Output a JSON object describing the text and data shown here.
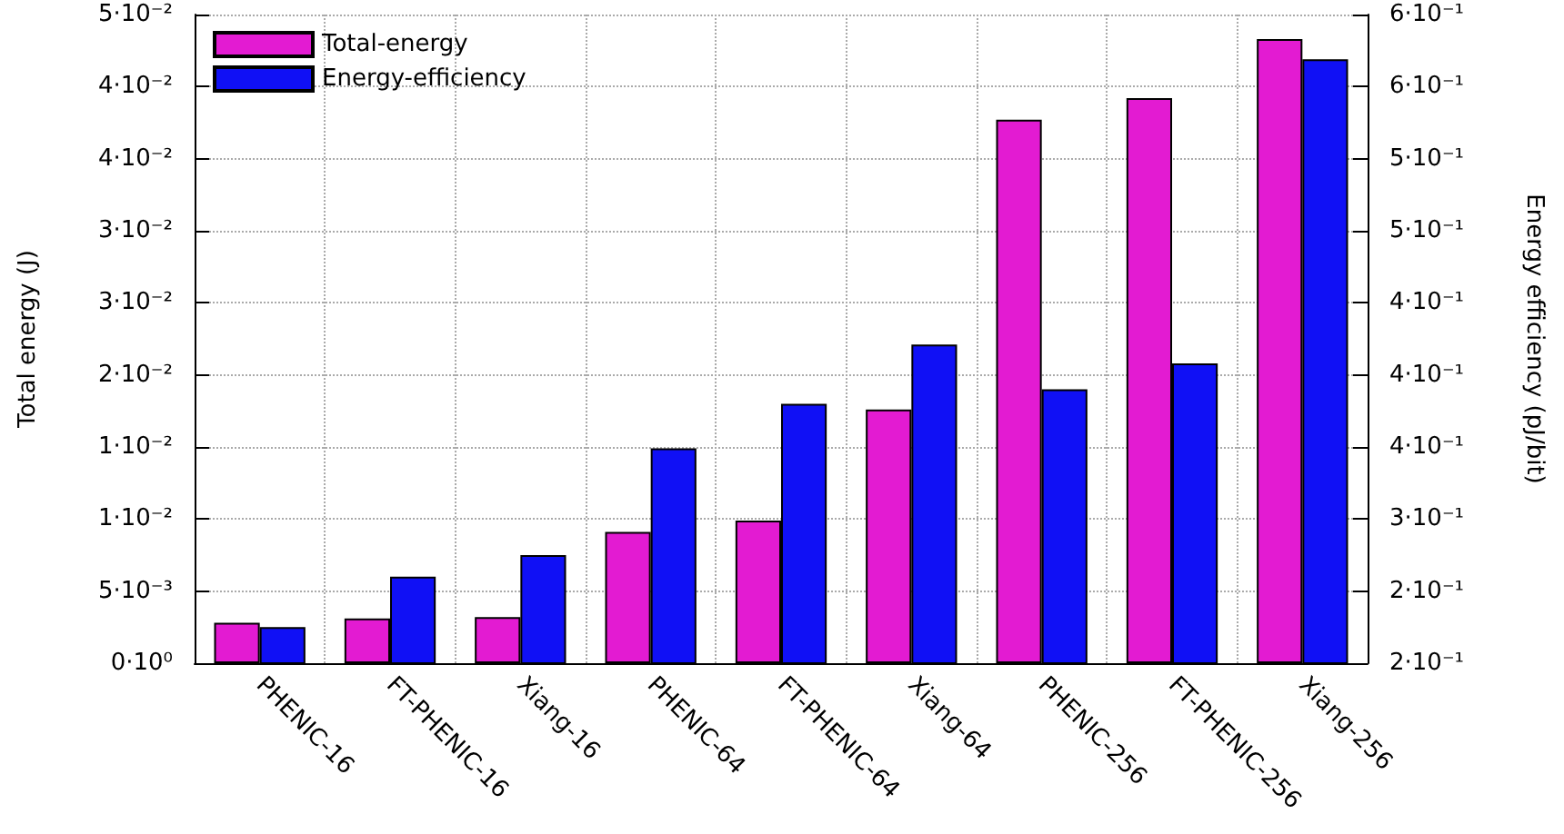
{
  "chart_data": {
    "type": "bar",
    "categories": [
      "PHENIC-16",
      "FT-PHENIC-16",
      "Xiang-16",
      "PHENIC-64",
      "FT-PHENIC-64",
      "Xiang-64",
      "PHENIC-256",
      "FT-PHENIC-256",
      "Xiang-256"
    ],
    "series": [
      {
        "name": "Total-energy",
        "color": "#e31bd2",
        "values": [
          0.0028,
          0.0031,
          0.0032,
          0.0091,
          0.0099,
          0.0176,
          0.0377,
          0.0392,
          0.0433
        ]
      },
      {
        "name": "Energy-efficiency",
        "color": "#1010f5",
        "axis": "y2",
        "values": [
          0.225,
          0.26,
          0.275,
          0.349,
          0.38,
          0.421,
          0.39,
          0.408,
          0.619
        ]
      }
    ],
    "ylabel": "Total energy (J)",
    "y2label": "Energy efficiency (pJ/bit)",
    "ylim": [
      0,
      0.045
    ],
    "yticks": [
      {
        "value": 0,
        "label": "0·10⁰"
      },
      {
        "value": 0.005,
        "label": "5·10⁻³"
      },
      {
        "value": 0.01,
        "label": "1·10⁻²"
      },
      {
        "value": 0.015,
        "label": "1·10⁻²"
      },
      {
        "value": 0.02,
        "label": "2·10⁻²"
      },
      {
        "value": 0.025,
        "label": "3·10⁻²"
      },
      {
        "value": 0.03,
        "label": "3·10⁻²"
      },
      {
        "value": 0.035,
        "label": "4·10⁻²"
      },
      {
        "value": 0.04,
        "label": "4·10⁻²"
      },
      {
        "value": 0.045,
        "label": "5·10⁻²"
      }
    ],
    "y2lim": [
      0.2,
      0.65
    ],
    "y2ticks": [
      {
        "value": 0.2,
        "label": "2·10⁻¹"
      },
      {
        "value": 0.25,
        "label": "2·10⁻¹"
      },
      {
        "value": 0.3,
        "label": "3·10⁻¹"
      },
      {
        "value": 0.35,
        "label": "4·10⁻¹"
      },
      {
        "value": 0.4,
        "label": "4·10⁻¹"
      },
      {
        "value": 0.45,
        "label": "4·10⁻¹"
      },
      {
        "value": 0.5,
        "label": "5·10⁻¹"
      },
      {
        "value": 0.55,
        "label": "5·10⁻¹"
      },
      {
        "value": 0.6,
        "label": "6·10⁻¹"
      },
      {
        "value": 0.65,
        "label": "6·10⁻¹"
      }
    ],
    "grid": true,
    "legend": "top left"
  }
}
